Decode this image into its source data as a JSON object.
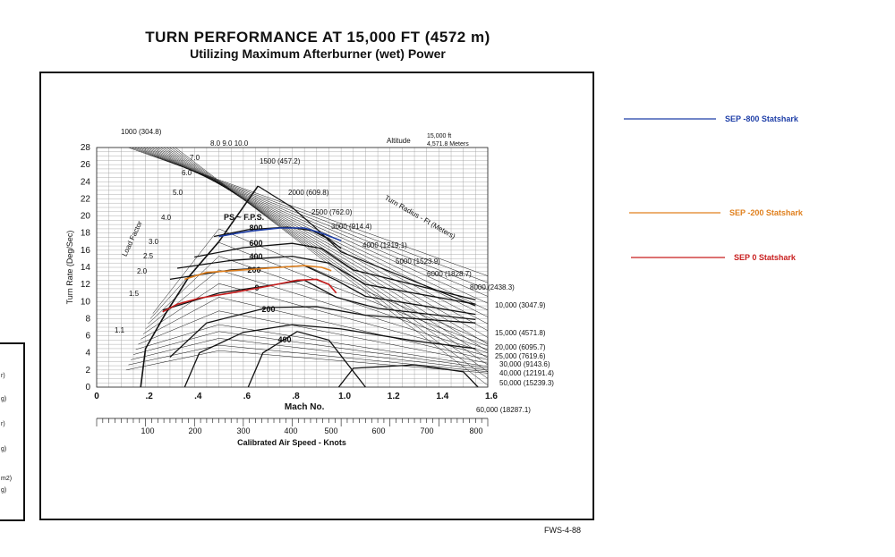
{
  "header": {
    "title": "TURN PERFORMANCE AT 15,000 FT (4572 m)",
    "subtitle": "Utilizing Maximum Afterburner (wet) Power"
  },
  "footer": {
    "code": "FWS-4-88"
  },
  "side_fragments": [
    "r)",
    "g)",
    "r)",
    "g)",
    "m2)",
    "g)"
  ],
  "chart_data": {
    "type": "line",
    "xlabel": "Mach No.",
    "ylabel": "Turn Rate (Deg/Sec)",
    "x2label": "Calibrated Air Speed - Knots",
    "xlim": [
      0,
      1.6
    ],
    "ylim": [
      0,
      28
    ],
    "x_ticks": [
      "0",
      ".2",
      ".4",
      ".6",
      ".8",
      "1.0",
      "1.2",
      "1.4",
      "1.6"
    ],
    "y_ticks": [
      0,
      2,
      4,
      6,
      8,
      10,
      12,
      14,
      16,
      18,
      20,
      22,
      24,
      26,
      28
    ],
    "kcas_ticks": [
      "100",
      "200",
      "300",
      "400",
      "500",
      "600",
      "700",
      "800"
    ],
    "altitude": {
      "label": "Altitude",
      "ft": "15,000 ft",
      "m": "4,571.8 Meters"
    },
    "ps_label": "PS ~ F.P.S.",
    "load_factor_label": "Load Factor",
    "load_factors": [
      "1.1",
      "1.5",
      "2.0",
      "2.5",
      "3.0",
      "4.0",
      "5.0",
      "6.0",
      "7.0",
      "8.0 9.0 10.0"
    ],
    "turn_radius_label": "Turn Radius - Ft (Meters)",
    "turn_radius": [
      "1000 (304.8)",
      "1500 (457.2)",
      "2000 (609.8)",
      "2500 (762.0)",
      "3000 (914.4)",
      "4000 (1219.1)",
      "5000 (1523.9)",
      "6000 (1828.7)",
      "8000 (2438.3)",
      "10,000 (3047.9)",
      "15,000 (4571.8)",
      "20,000 (6095.7)",
      "25,000 (7619.6)",
      "30,000 (9143.6)",
      "40,000 (12191.4)",
      "50,000 (15239.3)",
      "60,000 (18287.1)"
    ],
    "ps_contour_labels": [
      "800",
      "600",
      "400",
      "200",
      "0",
      "200",
      "400"
    ],
    "series": [
      {
        "name": "SEP -800 Statshark",
        "color": "#1f3fa8",
        "x": [
          0.5,
          0.62,
          0.75,
          0.85,
          0.92,
          1.0
        ],
        "y": [
          17.6,
          18.2,
          18.6,
          18.6,
          18.0,
          17.1
        ]
      },
      {
        "name": "SEP -200 Statshark",
        "color": "#e0801e",
        "x": [
          0.36,
          0.45,
          0.6,
          0.75,
          0.85,
          0.92,
          0.96
        ],
        "y": [
          12.6,
          13.4,
          13.7,
          14.0,
          14.2,
          14.0,
          13.6
        ]
      },
      {
        "name": "SEP 0 Statshark",
        "color": "#c81e1e",
        "x": [
          0.27,
          0.33,
          0.42,
          0.55,
          0.7,
          0.82,
          0.9,
          0.95,
          0.98
        ],
        "y": [
          8.8,
          9.7,
          10.4,
          11.0,
          11.8,
          12.5,
          12.6,
          12.0,
          11.0
        ]
      }
    ]
  }
}
